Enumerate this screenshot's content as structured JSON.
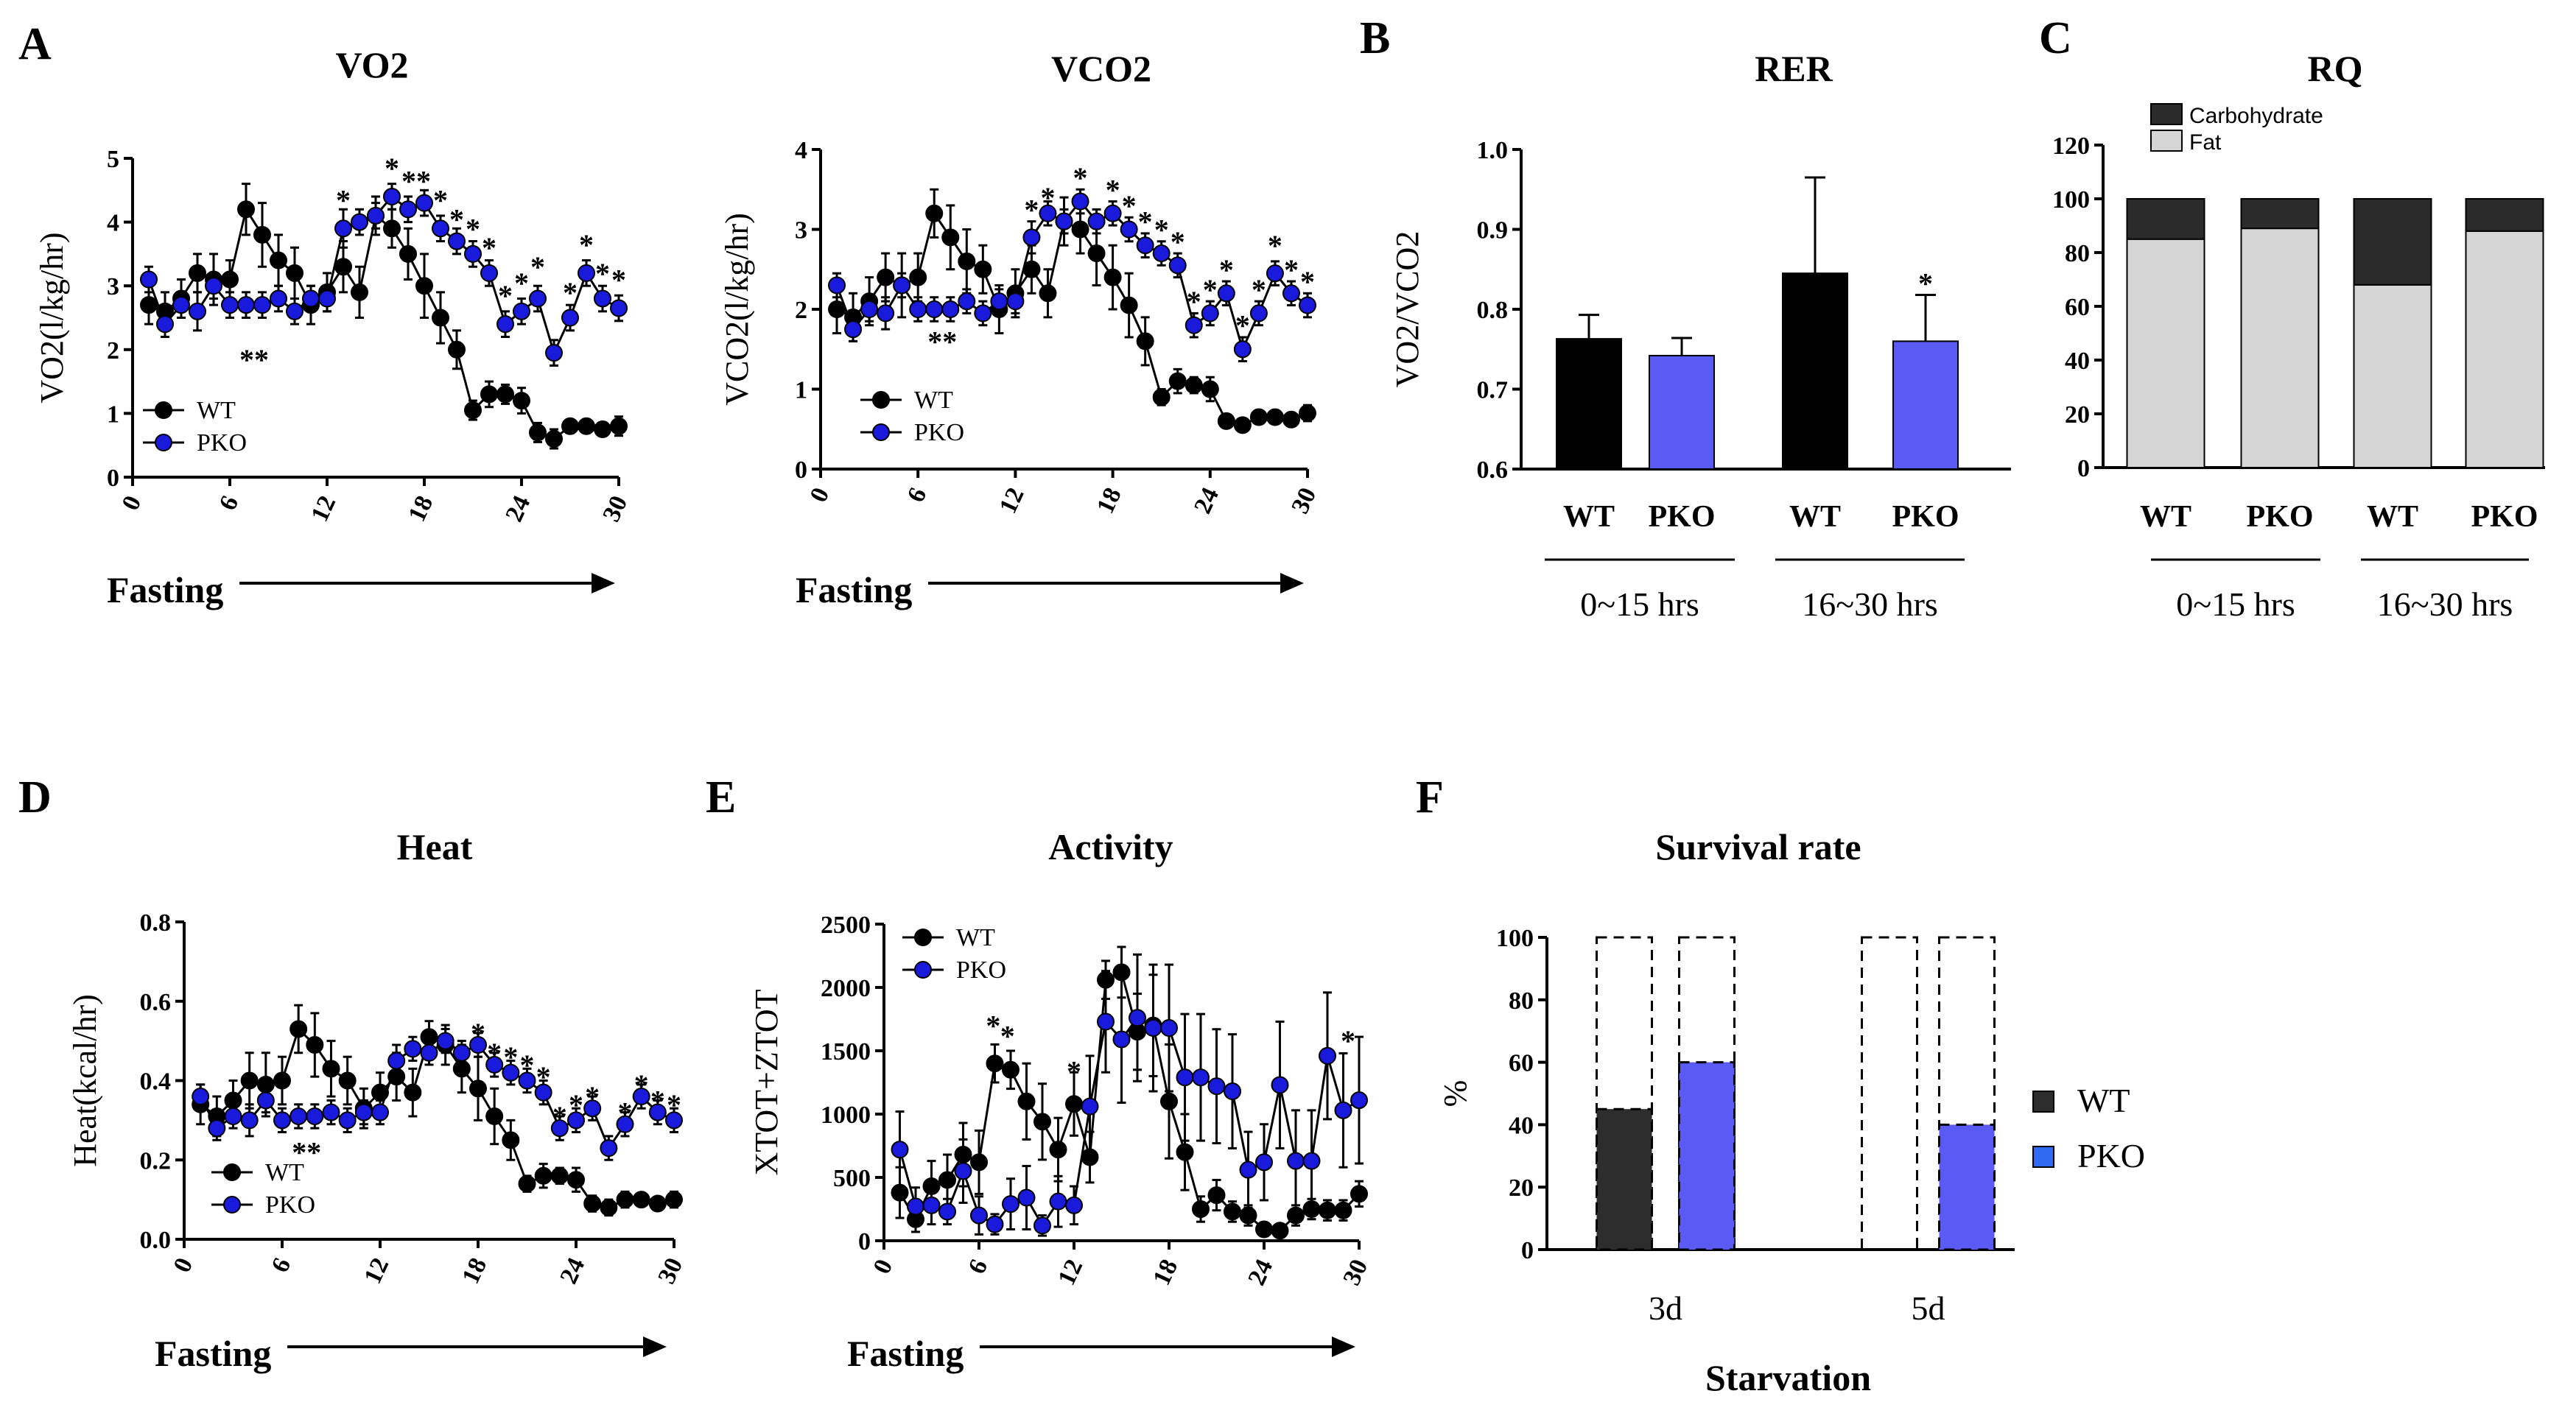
{
  "colors": {
    "wt": "#000000",
    "pko": "#1a1adc",
    "pko_bar": "#5a5af5",
    "fat": "#d6d6d6",
    "carb": "#2b2b2b",
    "f_wt": "#2d2d2d"
  },
  "chart_data": [
    {
      "id": "A1",
      "panel_letter": "A",
      "type": "line",
      "title": "VO2",
      "ylabel": "VO2(l/kg/hr)",
      "x_label_arrow": "Fasting",
      "x": [
        1,
        2,
        3,
        4,
        5,
        6,
        7,
        8,
        9,
        10,
        11,
        12,
        13,
        14,
        15,
        16,
        17,
        18,
        19,
        20,
        21,
        22,
        23,
        24,
        25,
        26,
        27,
        28,
        29,
        30
      ],
      "xticks": [
        "0",
        "6",
        "12",
        "18",
        "24",
        "30"
      ],
      "xlim": [
        0,
        30
      ],
      "yticks": [
        "0",
        "1",
        "2",
        "3",
        "4",
        "5"
      ],
      "ylim": [
        0,
        5
      ],
      "legend": [
        "WT",
        "PKO"
      ],
      "series": [
        {
          "name": "WT",
          "values": [
            2.7,
            2.6,
            2.8,
            3.2,
            3.1,
            3.1,
            4.2,
            3.8,
            3.4,
            3.2,
            2.7,
            2.9,
            3.3,
            2.9,
            4.1,
            3.9,
            3.5,
            3.0,
            2.5,
            2.0,
            1.05,
            1.3,
            1.3,
            1.2,
            0.7,
            0.6,
            0.8,
            0.8,
            0.75,
            0.8
          ],
          "errors": [
            0.3,
            0.3,
            0.3,
            0.3,
            0.4,
            0.3,
            0.4,
            0.5,
            0.4,
            0.4,
            0.3,
            0.3,
            0.4,
            0.4,
            0.3,
            0.3,
            0.4,
            0.5,
            0.4,
            0.3,
            0.15,
            0.2,
            0.15,
            0.2,
            0.15,
            0.15,
            0.1,
            0.1,
            0.1,
            0.15
          ]
        },
        {
          "name": "PKO",
          "values": [
            3.1,
            2.4,
            2.7,
            2.6,
            3.0,
            2.7,
            2.7,
            2.7,
            2.8,
            2.6,
            2.8,
            2.8,
            3.9,
            4.0,
            4.1,
            4.4,
            4.2,
            4.3,
            3.9,
            3.7,
            3.5,
            3.2,
            2.4,
            2.6,
            2.8,
            1.95,
            2.5,
            3.2,
            2.8,
            2.65
          ],
          "errors": [
            0.2,
            0.2,
            0.2,
            0.3,
            0.2,
            0.2,
            0.2,
            0.2,
            0.2,
            0.2,
            0.2,
            0.2,
            0.3,
            0.2,
            0.2,
            0.2,
            0.2,
            0.2,
            0.2,
            0.2,
            0.2,
            0.2,
            0.2,
            0.2,
            0.2,
            0.2,
            0.2,
            0.2,
            0.2,
            0.2
          ]
        }
      ],
      "annotations": [
        {
          "x": 7.5,
          "y": 1.85,
          "text": "**"
        },
        {
          "x": 13,
          "y": 4.35,
          "text": "*"
        },
        {
          "x": 16,
          "y": 4.85,
          "text": "*"
        },
        {
          "x": 17.5,
          "y": 4.65,
          "text": "**"
        },
        {
          "x": 19,
          "y": 4.35,
          "text": "*"
        },
        {
          "x": 20,
          "y": 4.05,
          "text": "*"
        },
        {
          "x": 21,
          "y": 3.9,
          "text": "*"
        },
        {
          "x": 22,
          "y": 3.6,
          "text": "*"
        },
        {
          "x": 23,
          "y": 2.85,
          "text": "*"
        },
        {
          "x": 24,
          "y": 3.05,
          "text": "*"
        },
        {
          "x": 25,
          "y": 3.3,
          "text": "*"
        },
        {
          "x": 27,
          "y": 2.9,
          "text": "*"
        },
        {
          "x": 28,
          "y": 3.65,
          "text": "*"
        },
        {
          "x": 29,
          "y": 3.2,
          "text": "*"
        },
        {
          "x": 30,
          "y": 3.1,
          "text": "*"
        }
      ]
    },
    {
      "id": "A2",
      "panel_letter": "",
      "type": "line",
      "title": "VCO2",
      "ylabel": "VCO2(l/kg/hr)",
      "x_label_arrow": "Fasting",
      "x": [
        1,
        2,
        3,
        4,
        5,
        6,
        7,
        8,
        9,
        10,
        11,
        12,
        13,
        14,
        15,
        16,
        17,
        18,
        19,
        20,
        21,
        22,
        23,
        24,
        25,
        26,
        27,
        28,
        29,
        30
      ],
      "xticks": [
        "0",
        "6",
        "12",
        "18",
        "24",
        "30"
      ],
      "xlim": [
        0,
        30
      ],
      "yticks": [
        "0",
        "1",
        "2",
        "3",
        "4"
      ],
      "ylim": [
        0,
        4
      ],
      "legend": [
        "WT",
        "PKO"
      ],
      "series": [
        {
          "name": "WT",
          "values": [
            2.0,
            1.9,
            2.1,
            2.4,
            2.3,
            2.4,
            3.2,
            2.9,
            2.6,
            2.5,
            2.0,
            2.2,
            2.5,
            2.2,
            3.1,
            3.0,
            2.7,
            2.4,
            2.05,
            1.6,
            0.9,
            1.1,
            1.05,
            1.0,
            0.6,
            0.55,
            0.65,
            0.65,
            0.62,
            0.7
          ],
          "errors": [
            0.3,
            0.3,
            0.3,
            0.3,
            0.4,
            0.3,
            0.3,
            0.4,
            0.4,
            0.3,
            0.3,
            0.3,
            0.3,
            0.3,
            0.3,
            0.3,
            0.4,
            0.4,
            0.4,
            0.3,
            0.1,
            0.15,
            0.1,
            0.15,
            0.05,
            0.05,
            0.05,
            0.05,
            0.05,
            0.1
          ]
        },
        {
          "name": "PKO",
          "values": [
            2.3,
            1.75,
            2.0,
            1.95,
            2.3,
            2.0,
            2.0,
            2.0,
            2.1,
            1.95,
            2.1,
            2.1,
            2.9,
            3.2,
            3.1,
            3.35,
            3.1,
            3.2,
            3.0,
            2.8,
            2.7,
            2.55,
            1.8,
            1.95,
            2.2,
            1.5,
            1.95,
            2.45,
            2.2,
            2.05
          ],
          "errors": [
            0.15,
            0.15,
            0.15,
            0.2,
            0.15,
            0.15,
            0.15,
            0.15,
            0.15,
            0.15,
            0.15,
            0.15,
            0.2,
            0.15,
            0.15,
            0.15,
            0.15,
            0.15,
            0.15,
            0.15,
            0.15,
            0.15,
            0.15,
            0.15,
            0.15,
            0.15,
            0.15,
            0.15,
            0.15,
            0.15
          ]
        }
      ],
      "annotations": [
        {
          "x": 7.5,
          "y": 1.6,
          "text": "**"
        },
        {
          "x": 13,
          "y": 3.25,
          "text": "*"
        },
        {
          "x": 14,
          "y": 3.4,
          "text": "*"
        },
        {
          "x": 16,
          "y": 3.65,
          "text": "*"
        },
        {
          "x": 18,
          "y": 3.5,
          "text": "*"
        },
        {
          "x": 19,
          "y": 3.3,
          "text": "*"
        },
        {
          "x": 20,
          "y": 3.1,
          "text": "*"
        },
        {
          "x": 21,
          "y": 3.0,
          "text": "*"
        },
        {
          "x": 22,
          "y": 2.85,
          "text": "*"
        },
        {
          "x": 23,
          "y": 2.1,
          "text": "*"
        },
        {
          "x": 24,
          "y": 2.25,
          "text": "*"
        },
        {
          "x": 25,
          "y": 2.5,
          "text": "*"
        },
        {
          "x": 26,
          "y": 1.8,
          "text": "*"
        },
        {
          "x": 27,
          "y": 2.25,
          "text": "*"
        },
        {
          "x": 28,
          "y": 2.8,
          "text": "*"
        },
        {
          "x": 29,
          "y": 2.5,
          "text": "*"
        },
        {
          "x": 30,
          "y": 2.35,
          "text": "*"
        }
      ]
    },
    {
      "id": "B",
      "panel_letter": "B",
      "type": "bar",
      "title": "RER",
      "ylabel": "VO2/VCO2",
      "categories": [
        "WT",
        "PKO",
        "WT",
        "PKO"
      ],
      "groups": [
        "0~15 hrs",
        "16~30 hrs"
      ],
      "values": [
        0.763,
        0.742,
        0.845,
        0.76
      ],
      "errors": [
        0.03,
        0.022,
        0.12,
        0.058
      ],
      "yticks": [
        "0.6",
        "0.7",
        "0.8",
        "0.9",
        "1.0"
      ],
      "ylim": [
        0.6,
        1.0
      ],
      "annotations": [
        {
          "bar": 3,
          "text": "*"
        }
      ]
    },
    {
      "id": "C",
      "panel_letter": "C",
      "type": "bar",
      "title": "RQ",
      "categories": [
        "WT",
        "PKO",
        "WT",
        "PKO"
      ],
      "groups": [
        "0~15 hrs",
        "16~30 hrs"
      ],
      "stack": [
        {
          "name": "Fat",
          "values": [
            85,
            89,
            68,
            88
          ]
        },
        {
          "name": "Carbohydrate",
          "values": [
            15,
            11,
            32,
            12
          ]
        }
      ],
      "legend": [
        "Carbohydrate",
        "Fat"
      ],
      "yticks": [
        "0",
        "20",
        "40",
        "60",
        "80",
        "100",
        "120"
      ],
      "ylim": [
        0,
        120
      ]
    },
    {
      "id": "D",
      "panel_letter": "D",
      "type": "line",
      "title": "Heat",
      "ylabel": "Heat(kcal/hr)",
      "x_label_arrow": "Fasting",
      "x": [
        1,
        2,
        3,
        4,
        5,
        6,
        7,
        8,
        9,
        10,
        11,
        12,
        13,
        14,
        15,
        16,
        17,
        18,
        19,
        20,
        21,
        22,
        23,
        24,
        25,
        26,
        27,
        28,
        29,
        30
      ],
      "xticks": [
        "0",
        "6",
        "12",
        "18",
        "24",
        "30"
      ],
      "xlim": [
        0,
        30
      ],
      "yticks": [
        "0.0",
        "0.2",
        "0.4",
        "0.6",
        "0.8"
      ],
      "ylim": [
        0,
        0.8
      ],
      "legend": [
        "WT",
        "PKO"
      ],
      "series": [
        {
          "name": "WT",
          "values": [
            0.34,
            0.31,
            0.35,
            0.4,
            0.39,
            0.4,
            0.53,
            0.49,
            0.43,
            0.4,
            0.33,
            0.37,
            0.41,
            0.37,
            0.51,
            0.49,
            0.43,
            0.38,
            0.31,
            0.25,
            0.14,
            0.16,
            0.16,
            0.15,
            0.09,
            0.08,
            0.1,
            0.1,
            0.09,
            0.1
          ],
          "errors": [
            0.05,
            0.05,
            0.05,
            0.07,
            0.08,
            0.06,
            0.06,
            0.08,
            0.07,
            0.06,
            0.05,
            0.05,
            0.06,
            0.06,
            0.04,
            0.05,
            0.06,
            0.08,
            0.07,
            0.05,
            0.02,
            0.03,
            0.02,
            0.03,
            0.02,
            0.02,
            0.02,
            0.01,
            0.01,
            0.02
          ]
        },
        {
          "name": "PKO",
          "values": [
            0.36,
            0.28,
            0.31,
            0.3,
            0.35,
            0.3,
            0.31,
            0.31,
            0.32,
            0.3,
            0.32,
            0.32,
            0.45,
            0.48,
            0.47,
            0.5,
            0.47,
            0.49,
            0.44,
            0.42,
            0.4,
            0.37,
            0.28,
            0.3,
            0.33,
            0.23,
            0.29,
            0.36,
            0.32,
            0.3
          ],
          "errors": [
            0.03,
            0.03,
            0.03,
            0.04,
            0.03,
            0.03,
            0.03,
            0.03,
            0.03,
            0.03,
            0.03,
            0.03,
            0.04,
            0.03,
            0.03,
            0.03,
            0.03,
            0.03,
            0.03,
            0.03,
            0.03,
            0.03,
            0.03,
            0.03,
            0.03,
            0.03,
            0.03,
            0.03,
            0.03,
            0.03
          ]
        }
      ],
      "annotations": [
        {
          "x": 7.5,
          "y": 0.22,
          "text": "**"
        },
        {
          "x": 18,
          "y": 0.52,
          "text": "*"
        },
        {
          "x": 19,
          "y": 0.47,
          "text": "*"
        },
        {
          "x": 20,
          "y": 0.46,
          "text": "*"
        },
        {
          "x": 21,
          "y": 0.44,
          "text": "*"
        },
        {
          "x": 22,
          "y": 0.41,
          "text": "*"
        },
        {
          "x": 23,
          "y": 0.31,
          "text": "*"
        },
        {
          "x": 24,
          "y": 0.34,
          "text": "*"
        },
        {
          "x": 25,
          "y": 0.36,
          "text": "*"
        },
        {
          "x": 27,
          "y": 0.32,
          "text": "*"
        },
        {
          "x": 28,
          "y": 0.39,
          "text": "*"
        },
        {
          "x": 29,
          "y": 0.35,
          "text": "*"
        },
        {
          "x": 30,
          "y": 0.34,
          "text": "*"
        }
      ]
    },
    {
      "id": "E",
      "panel_letter": "E",
      "type": "line",
      "title": "Activity",
      "ylabel": "XTOT+ZTOT",
      "x_label_arrow": "Fasting",
      "x": [
        1,
        2,
        3,
        4,
        5,
        6,
        7,
        8,
        9,
        10,
        11,
        12,
        13,
        14,
        15,
        16,
        17,
        18,
        19,
        20,
        21,
        22,
        23,
        24,
        25,
        26,
        27,
        28,
        29,
        30
      ],
      "xticks": [
        "0",
        "6",
        "12",
        "18",
        "24",
        "30"
      ],
      "xlim": [
        0,
        30
      ],
      "yticks": [
        "0",
        "500",
        "1000",
        "1500",
        "2000",
        "2500"
      ],
      "ylim": [
        0,
        2500
      ],
      "legend": [
        "WT",
        "PKO"
      ],
      "series": [
        {
          "name": "WT",
          "values": [
            380,
            170,
            430,
            480,
            680,
            620,
            1400,
            1350,
            1100,
            940,
            720,
            1080,
            660,
            2060,
            2120,
            1650,
            1700,
            1100,
            700,
            250,
            360,
            230,
            200,
            90,
            80,
            200,
            250,
            240,
            240,
            370
          ],
          "errors": [
            200,
            100,
            200,
            200,
            250,
            250,
            150,
            150,
            300,
            300,
            250,
            250,
            200,
            150,
            200,
            300,
            400,
            450,
            300,
            100,
            120,
            80,
            80,
            30,
            30,
            80,
            80,
            80,
            80,
            100
          ]
        },
        {
          "name": "PKO",
          "values": [
            720,
            270,
            280,
            230,
            550,
            200,
            130,
            290,
            340,
            120,
            310,
            280,
            1060,
            1730,
            1590,
            1760,
            1680,
            1680,
            1290,
            1290,
            1220,
            1180,
            560,
            620,
            1230,
            630,
            630,
            1460,
            1030,
            1110
          ],
          "errors": [
            300,
            150,
            150,
            100,
            250,
            150,
            80,
            200,
            250,
            80,
            200,
            150,
            400,
            400,
            500,
            500,
            500,
            500,
            500,
            500,
            450,
            450,
            300,
            300,
            500,
            400,
            400,
            500,
            450,
            500
          ]
        }
      ],
      "annotations": [
        {
          "x": 6.9,
          "y": 1700,
          "text": "*"
        },
        {
          "x": 7.8,
          "y": 1620,
          "text": "*"
        },
        {
          "x": 12,
          "y": 1340,
          "text": "*"
        },
        {
          "x": 29.3,
          "y": 1580,
          "text": "*"
        }
      ]
    },
    {
      "id": "F",
      "panel_letter": "F",
      "type": "bar",
      "title": "Survival rate",
      "ylabel": "%",
      "xlabel": "Starvation",
      "categories": [
        "3d",
        "5d"
      ],
      "series": [
        {
          "name": "WT",
          "values": [
            45,
            0
          ]
        },
        {
          "name": "PKO",
          "values": [
            60,
            40
          ]
        }
      ],
      "outline_max": 100,
      "legend": [
        "WT",
        "PKO"
      ],
      "yticks": [
        "0",
        "20",
        "40",
        "60",
        "80",
        "100"
      ],
      "ylim": [
        0,
        100
      ]
    }
  ]
}
